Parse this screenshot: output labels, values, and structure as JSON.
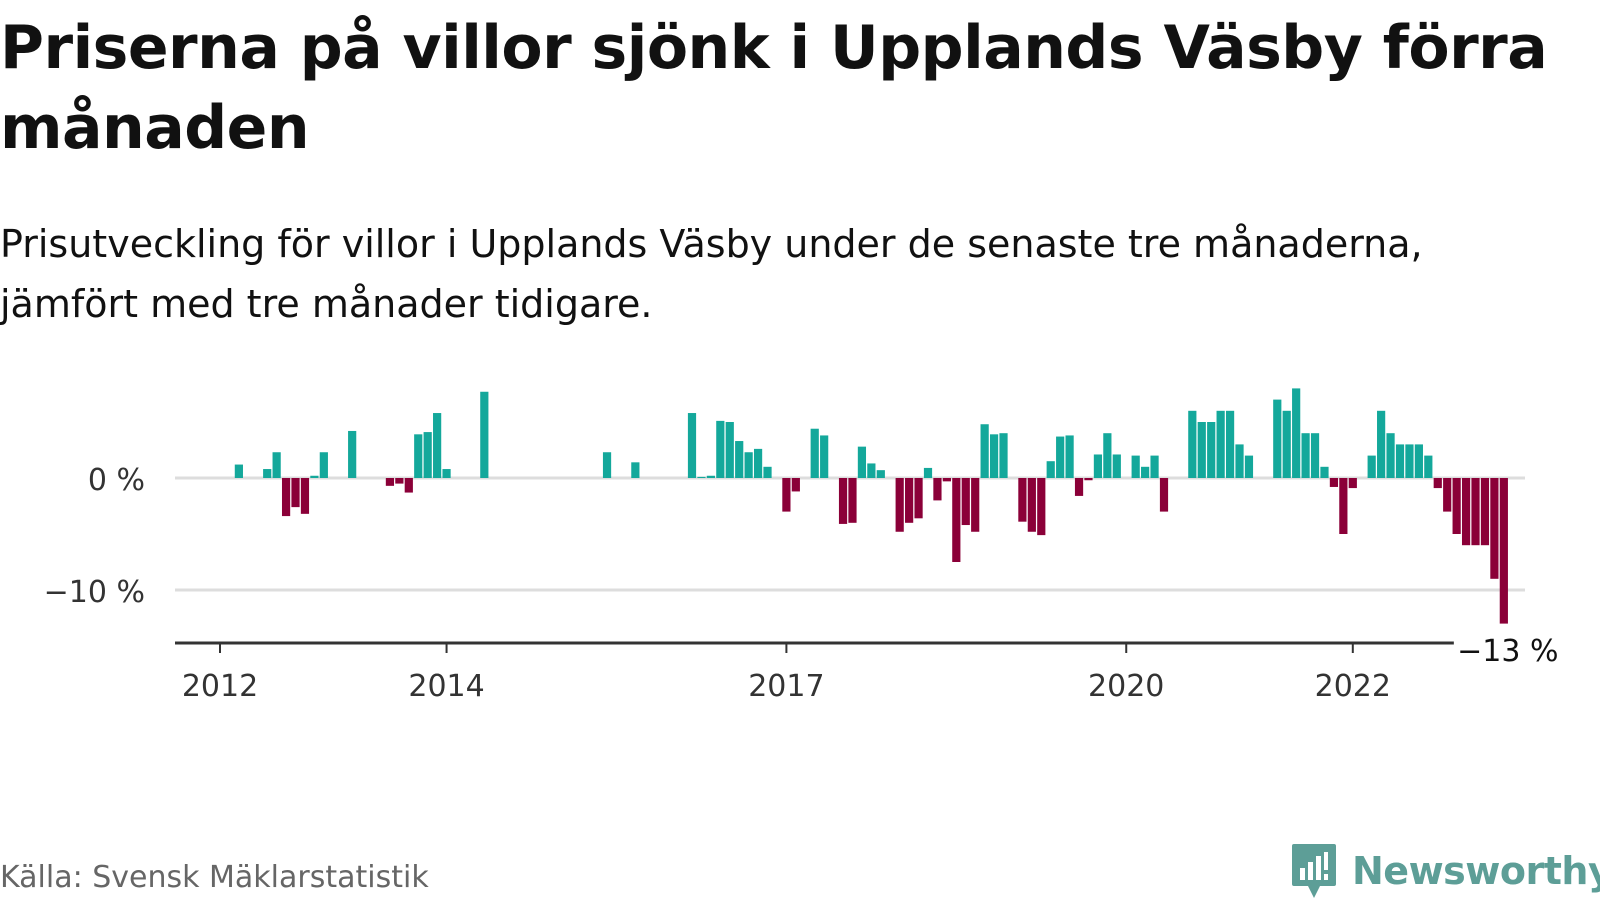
{
  "title": "Priserna på villor sjönk i Upplands Väsby förra månaden",
  "subtitle": "Prisutveckling för villor i Upplands Väsby under de senaste tre månaderna, jämfört med tre månader tidigare.",
  "source": "Källa: Svensk Mäklarstatistik",
  "brand": "Newsworthy",
  "colors": {
    "positive": "#14a89b",
    "negative": "#8b0038",
    "grid": "#dddddd",
    "axis": "#333333",
    "brand": "#5d9e97"
  },
  "chart_data": {
    "type": "bar",
    "x_start": "2012-01",
    "x_interval": "month",
    "values": [
      null,
      null,
      1.2,
      null,
      null,
      0.8,
      2.3,
      -3.4,
      -2.6,
      -3.2,
      0.2,
      2.3,
      null,
      null,
      4.2,
      null,
      null,
      null,
      -0.7,
      -0.5,
      -1.3,
      3.9,
      4.1,
      5.8,
      0.8,
      null,
      null,
      null,
      7.7,
      null,
      null,
      null,
      null,
      null,
      null,
      null,
      null,
      null,
      null,
      null,
      null,
      null,
      null,
      null,
      null,
      null,
      null,
      null,
      null,
      null,
      null,
      null,
      null,
      null,
      null,
      null,
      null,
      null,
      null,
      null,
      null,
      null,
      null,
      null,
      null,
      null,
      null,
      null,
      null,
      null,
      null,
      null,
      null,
      null,
      null,
      null,
      null,
      null,
      null,
      null,
      null,
      null,
      null,
      null,
      null,
      null,
      null,
      null,
      null,
      null,
      null,
      null,
      null,
      null,
      null,
      null,
      null,
      null,
      null,
      null,
      null,
      null,
      null,
      null,
      null,
      null,
      null,
      null,
      null,
      null,
      null,
      null,
      null,
      null,
      null,
      null,
      null,
      null,
      null,
      null,
      null,
      null,
      null,
      null,
      null,
      null,
      null,
      null,
      null,
      null,
      null,
      null,
      null,
      null,
      null,
      null,
      null,
      null,
      null,
      null,
      null
    ],
    "values_2015_onward": [
      null,
      null,
      null,
      null,
      null,
      2.3,
      null,
      null,
      1.4,
      null,
      null,
      null,
      null,
      null,
      5.8,
      0.1,
      0.2,
      5.1,
      5.0,
      3.3,
      2.3,
      2.6,
      1.0,
      null,
      -3.0,
      -1.2,
      null,
      4.4,
      3.8,
      null,
      -4.1,
      -4.0,
      2.8,
      1.3,
      0.7,
      null,
      -4.8,
      -4.0,
      -3.6,
      0.9,
      -2.0,
      -0.3,
      -7.5,
      -4.2,
      -4.8,
      4.8,
      3.9,
      4.0,
      null,
      -3.9,
      -4.8,
      -5.1,
      1.5,
      3.7,
      3.8,
      -1.6,
      -0.2,
      2.1,
      4.0,
      2.1,
      null,
      2.0,
      1.0,
      2.0,
      -3.0,
      null,
      null,
      6.0,
      5.0,
      5.0,
      6.0,
      6.0,
      3.0,
      2.0,
      null,
      null,
      7.0,
      6.0,
      8.0,
      4.0,
      4.0,
      1.0,
      -0.8,
      -5.0,
      -0.9,
      null,
      2.0,
      6.0,
      4.0,
      3.0,
      3.0,
      3.0,
      2.0,
      -0.9,
      -3.0,
      -5.0,
      -6.0,
      -6.0,
      -6.0,
      -9.0,
      -13.0
    ],
    "x_ticks": [
      "2012",
      "2014",
      "2017",
      "2020",
      "2022"
    ],
    "y_ticks": [
      "0 %",
      "−10 %"
    ],
    "ylim": [
      -15,
      8
    ],
    "annotation": "−13 %",
    "grid": true
  }
}
